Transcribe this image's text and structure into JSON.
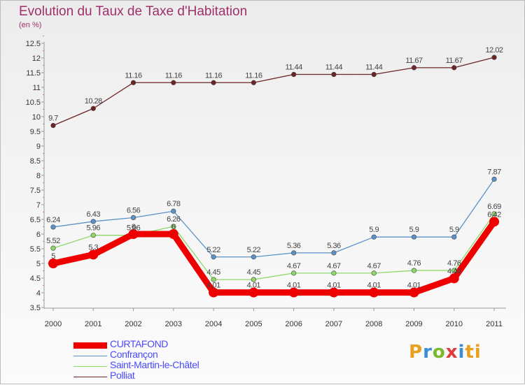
{
  "header": {
    "title": "Evolution du Taux de Taxe d'Habitation",
    "subtitle": "(en %)"
  },
  "logo": {
    "letters": [
      "P",
      "r",
      "o",
      "x",
      "i",
      "ti"
    ]
  },
  "chart_data": {
    "type": "line",
    "title": "Evolution du Taux de Taxe d'Habitation",
    "ylabel": "(en %)",
    "xlabel": "",
    "ylim": [
      3.5,
      12.5
    ],
    "yticks": [
      "3.5",
      "4",
      "4.5",
      "5",
      "5.5",
      "6",
      "6.5",
      "7",
      "7.5",
      "8",
      "8.5",
      "9",
      "9.5",
      "10",
      "10.5",
      "11",
      "11.5",
      "12",
      "12.5"
    ],
    "categories": [
      "2000",
      "2001",
      "2002",
      "2003",
      "2004",
      "2005",
      "2006",
      "2007",
      "2008",
      "2009",
      "2010",
      "2011"
    ],
    "grid": false,
    "legend_position": "bottom-left",
    "series": [
      {
        "name": "CURTAFOND",
        "color": "#ee0000",
        "values": [
          5,
          5.3,
          6,
          6,
          4.01,
          4.01,
          4.01,
          4.01,
          4.01,
          4.01,
          4.49,
          6.42
        ],
        "labels": [
          "5",
          "5.3",
          "6",
          "6",
          "4.01",
          "4.01",
          "4.01",
          "4.01",
          "4.01",
          "4.01",
          "4.49",
          "6.42"
        ]
      },
      {
        "name": "Confrançon",
        "color": "#5b92c8",
        "values": [
          6.24,
          6.43,
          6.56,
          6.78,
          5.22,
          5.22,
          5.36,
          5.36,
          5.9,
          5.9,
          5.9,
          7.87
        ],
        "labels": [
          "6.24",
          "6.43",
          "6.56",
          "6.78",
          "5.22",
          "5.22",
          "5.36",
          "5.36",
          "5.9",
          "5.9",
          "5.9",
          "7.87"
        ]
      },
      {
        "name": "Saint-Martin-le-Châtel",
        "color": "#8ed86a",
        "values": [
          5.52,
          5.96,
          5.96,
          6.26,
          4.45,
          4.45,
          4.67,
          4.67,
          4.67,
          4.76,
          4.76,
          6.69
        ],
        "labels": [
          "5.52",
          "5.96",
          "5.96",
          "6.26",
          "4.45",
          "4.45",
          "4.67",
          "4.67",
          "4.67",
          "4.76",
          "4.76",
          "6.69"
        ]
      },
      {
        "name": "Polliat",
        "color": "#6e2424",
        "values": [
          9.7,
          10.28,
          11.16,
          11.16,
          11.16,
          11.16,
          11.44,
          11.44,
          11.44,
          11.67,
          11.67,
          12.02
        ],
        "labels": [
          "9.7",
          "10.28",
          "11.16",
          "11.16",
          "11.16",
          "11.16",
          "11.44",
          "11.44",
          "11.44",
          "11.67",
          "11.67",
          "12.02"
        ]
      }
    ]
  }
}
